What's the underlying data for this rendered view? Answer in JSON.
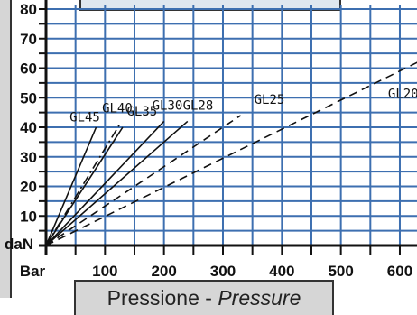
{
  "chart_data": {
    "type": "line",
    "title": "",
    "xlabel": "Pressione - Pressure",
    "xlabel_parts": {
      "it": "Pressione",
      "sep": " - ",
      "en": "Pressure"
    },
    "ylabel": "daN",
    "x_unit_label": "Bar",
    "xlim": [
      0,
      630
    ],
    "ylim": [
      0,
      80
    ],
    "xticks": [
      100,
      200,
      300,
      400,
      500,
      600
    ],
    "yticks": [
      10,
      20,
      30,
      40,
      50,
      60,
      70,
      80
    ],
    "grid": true,
    "series": [
      {
        "name": "GL45",
        "style": "solid",
        "x": [
          0,
          85
        ],
        "y": [
          0,
          40
        ]
      },
      {
        "name": "GL40",
        "style": "dashdot",
        "x": [
          0,
          125
        ],
        "y": [
          0,
          41
        ]
      },
      {
        "name": "GL35",
        "style": "solid",
        "x": [
          0,
          130
        ],
        "y": [
          0,
          40
        ]
      },
      {
        "name": "GL30",
        "style": "solid",
        "x": [
          0,
          200
        ],
        "y": [
          0,
          42
        ]
      },
      {
        "name": "GL28",
        "style": "solid",
        "x": [
          0,
          240
        ],
        "y": [
          0,
          42
        ]
      },
      {
        "name": "GL25",
        "style": "dashed",
        "x": [
          0,
          330
        ],
        "y": [
          0,
          44
        ]
      },
      {
        "name": "GL20",
        "style": "dashed",
        "x": [
          0,
          630
        ],
        "y": [
          0,
          62
        ]
      }
    ],
    "annotations": [
      {
        "text": "GL45",
        "x": 40,
        "y": 42
      },
      {
        "text": "GL40",
        "x": 95,
        "y": 45
      },
      {
        "text": "GL35",
        "x": 137,
        "y": 44
      },
      {
        "text": "GL30",
        "x": 180,
        "y": 46
      },
      {
        "text": "GL28",
        "x": 232,
        "y": 46
      },
      {
        "text": "GL25",
        "x": 353,
        "y": 48
      },
      {
        "text": "GL20",
        "x": 580,
        "y": 50
      }
    ]
  },
  "colors": {
    "grid": "#3d6fb0",
    "lines": "#111111",
    "panel": "#d6d6d6",
    "top_box": "#dfe7ef"
  }
}
